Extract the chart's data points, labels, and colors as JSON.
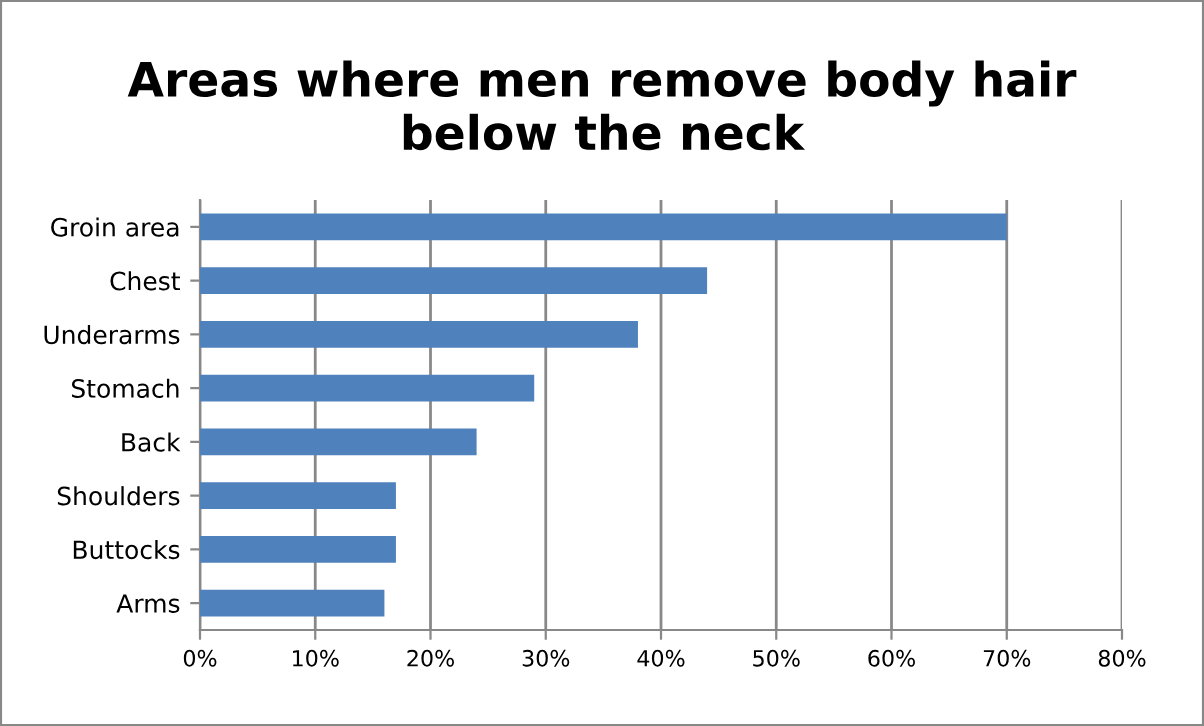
{
  "chart_data": {
    "type": "bar",
    "orientation": "horizontal",
    "title": "Areas where men remove body hair\nbelow the neck",
    "categories": [
      "Groin area",
      "Chest",
      "Underarms",
      "Stomach",
      "Back",
      "Shoulders",
      "Buttocks",
      "Arms"
    ],
    "values": [
      70,
      44,
      38,
      29,
      24,
      17,
      17,
      16
    ],
    "color": "#4f81bd",
    "xlim": [
      0,
      80
    ],
    "xticks": [
      {
        "value": 0,
        "label": "0%"
      },
      {
        "value": 10,
        "label": "10%"
      },
      {
        "value": 20,
        "label": "20%"
      },
      {
        "value": 30,
        "label": "30%"
      },
      {
        "value": 40,
        "label": "40%"
      },
      {
        "value": 50,
        "label": "50%"
      },
      {
        "value": 60,
        "label": "60%"
      },
      {
        "value": 70,
        "label": "70%"
      },
      {
        "value": 80,
        "label": "80%"
      }
    ],
    "grid": "x",
    "legend": false
  }
}
